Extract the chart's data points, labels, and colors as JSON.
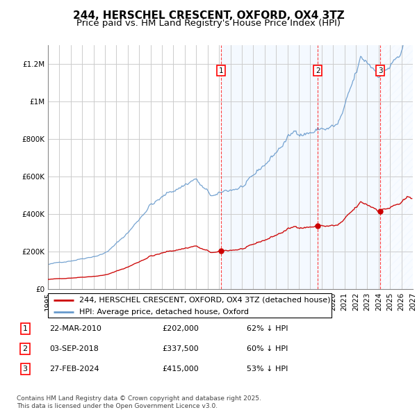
{
  "title": "244, HERSCHEL CRESCENT, OXFORD, OX4 3TZ",
  "subtitle": "Price paid vs. HM Land Registry's House Price Index (HPI)",
  "ylim": [
    0,
    1300000
  ],
  "yticks": [
    0,
    200000,
    400000,
    600000,
    800000,
    1000000,
    1200000
  ],
  "ytick_labels": [
    "£0",
    "£200K",
    "£400K",
    "£600K",
    "£800K",
    "£1M",
    "£1.2M"
  ],
  "x_start_year": 1995,
  "x_end_year": 2027,
  "sale_decimal_years": [
    2010.2,
    2018.67,
    2024.15
  ],
  "sale_prices": [
    202000,
    337500,
    415000
  ],
  "sale_labels": [
    "1",
    "2",
    "3"
  ],
  "sale_info": [
    {
      "label": "1",
      "date": "22-MAR-2010",
      "price": "£202,000",
      "pct": "62% ↓ HPI"
    },
    {
      "label": "2",
      "date": "03-SEP-2018",
      "price": "£337,500",
      "pct": "60% ↓ HPI"
    },
    {
      "label": "3",
      "date": "27-FEB-2024",
      "price": "£415,000",
      "pct": "53% ↓ HPI"
    }
  ],
  "legend_line1": "244, HERSCHEL CRESCENT, OXFORD, OX4 3TZ (detached house)",
  "legend_line2": "HPI: Average price, detached house, Oxford",
  "footer": "Contains HM Land Registry data © Crown copyright and database right 2025.\nThis data is licensed under the Open Government Licence v3.0.",
  "line_color_red": "#cc0000",
  "line_color_blue": "#6699cc",
  "shade_color": "#ddeeff",
  "grid_color": "#cccccc",
  "title_fontsize": 11,
  "subtitle_fontsize": 9.5,
  "tick_fontsize": 7.5,
  "legend_fontsize": 8,
  "table_fontsize": 8,
  "footer_fontsize": 6.5
}
